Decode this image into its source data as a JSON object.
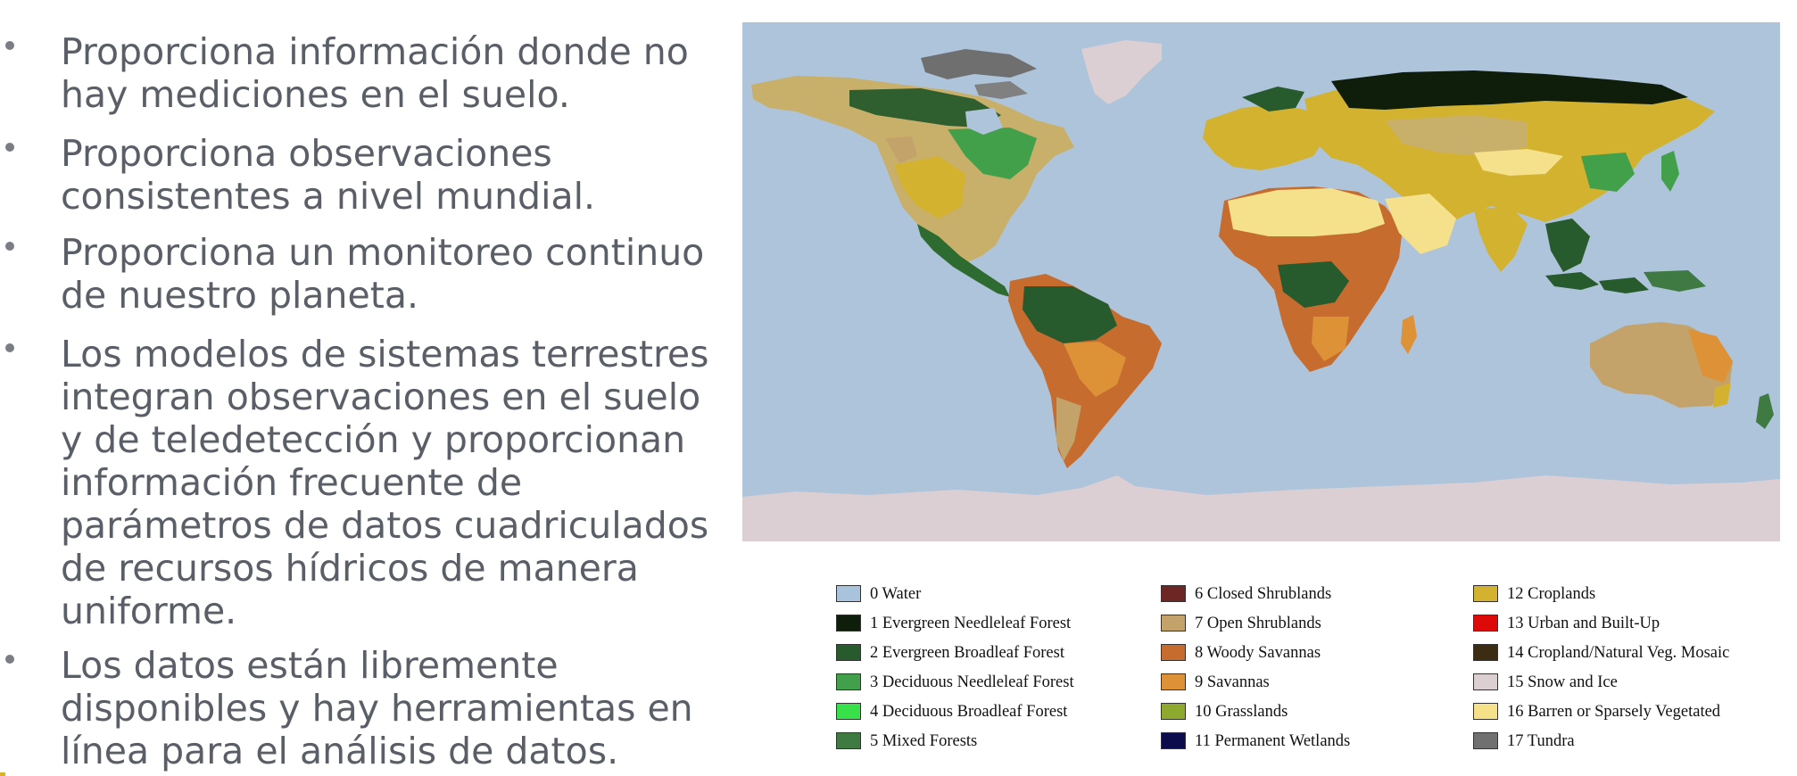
{
  "bullets": [
    "Proporciona información donde no hay mediciones en el suelo.",
    "Proporciona observaciones consistentes a nivel mundial.",
    "Proporciona un monitoreo continuo de nuestro planeta.",
    "Los modelos de sistemas terrestres integran observaciones en el suelo y de teledetección y proporcionan información frecuente de parámetros de datos cuadriculados de recursos hídricos de manera uniforme.",
    "Los datos están libremente disponibles y hay herramientas en línea para el análisis de datos."
  ],
  "map": {
    "colors": {
      "ocean": "#aec4db",
      "ice": "#dbcfd3",
      "desert": "#f5e08c"
    }
  },
  "legend": {
    "columns": [
      [
        {
          "label": "0 Water",
          "color": "#aac3dc"
        },
        {
          "label": "1 Evergreen Needleleaf Forest",
          "color": "#0f1e0a"
        },
        {
          "label": "2 Evergreen Broadleaf Forest",
          "color": "#275a2c"
        },
        {
          "label": "3 Deciduous Needleleaf Forest",
          "color": "#43a04a"
        },
        {
          "label": "4 Deciduous Broadleaf Forest",
          "color": "#38e14a"
        },
        {
          "label": "5 Mixed Forests",
          "color": "#3f7a42"
        }
      ],
      [
        {
          "label": "6 Closed Shrublands",
          "color": "#6e2624"
        },
        {
          "label": "7 Open Shrublands",
          "color": "#c3a36a"
        },
        {
          "label": "8 Woody Savannas",
          "color": "#c66c2f"
        },
        {
          "label": "9 Savannas",
          "color": "#de9237"
        },
        {
          "label": "10 Grasslands",
          "color": "#8daa2e"
        },
        {
          "label": "11 Permanent Wetlands",
          "color": "#0c0c4c"
        }
      ],
      [
        {
          "label": "12 Croplands",
          "color": "#d2b22e"
        },
        {
          "label": "13 Urban and Built-Up",
          "color": "#de0a0a"
        },
        {
          "label": "14 Cropland/Natural Veg. Mosaic",
          "color": "#3c2c12"
        },
        {
          "label": "15 Snow and Ice",
          "color": "#dccfd2"
        },
        {
          "label": "16 Barren or Sparsely Vegetated",
          "color": "#f5e188"
        },
        {
          "label": "17 Tundra",
          "color": "#707070"
        }
      ]
    ]
  }
}
